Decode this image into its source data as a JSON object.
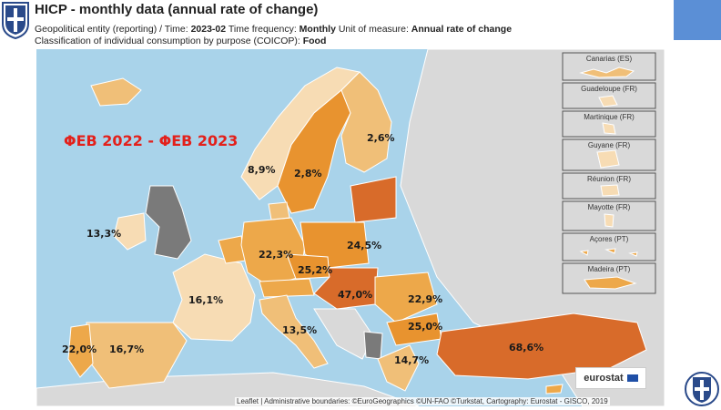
{
  "header": {
    "title": "HICP - monthly data (annual rate of change)",
    "line2_prefix": "Geopolitical entity (reporting)  / Time: ",
    "time": "2023-02",
    "line2_mid": "  Time frequency: ",
    "frequency": "Monthly",
    "line2_mid2": "  Unit of measure: ",
    "unit": "Annual rate of change",
    "line3_prefix": "Classification of individual consumption by purpose (COICOP): ",
    "coicop": "Food"
  },
  "map": {
    "period_label": "ΦΕΒ 2022 - ΦΕΒ 2023",
    "values": {
      "finland": "2,6%",
      "norway": "8,9%",
      "sweden": "2,8%",
      "ireland": "13,3%",
      "germany": "22,3%",
      "poland": "24,5%",
      "czechia": "25,2%",
      "hungary": "47,0%",
      "romania": "22,9%",
      "bulgaria": "25,0%",
      "france": "16,1%",
      "italy": "13,5%",
      "portugal": "22,0%",
      "spain": "16,7%",
      "greece": "14,7%",
      "turkey": "68,6%"
    },
    "insets": [
      "Canarias (ES)",
      "Guadeloupe (FR)",
      "Martinique (FR)",
      "Guyane (FR)",
      "Réunion (FR)",
      "Mayotte (FR)",
      "Açores (PT)",
      "Madeira (PT)"
    ],
    "attribution": "Leaflet | Administrative boundaries: ©EuroGeographics ©UN-FAO ©Turkstat, Cartography: Eurostat - GISCO, 2019",
    "brand": "eurostat"
  },
  "colors": {
    "lightest": "#f7dcb4",
    "light": "#f0bf78",
    "mid": "#eda84a",
    "orange": "#e8932f",
    "dark": "#d86b2a",
    "darkest": "#c9562a",
    "no_data": "#7a7a7a",
    "non_eu": "#d9d9d9",
    "sea": "#a9d3ea",
    "title_red": "#e3201b"
  }
}
